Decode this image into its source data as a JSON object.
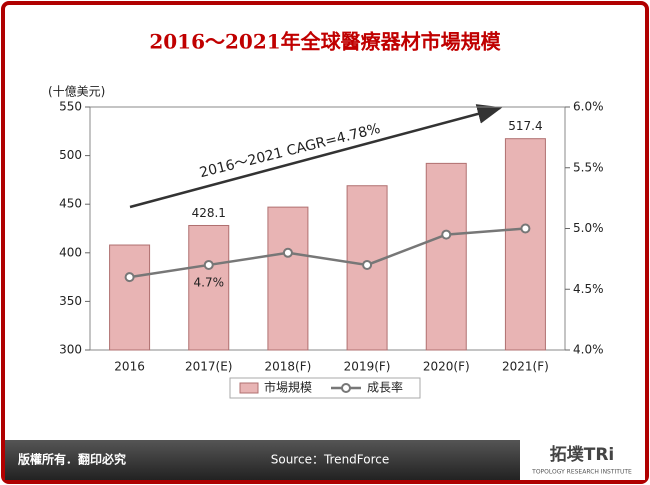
{
  "chart_data": {
    "type": "bar",
    "title": "2016～2021年全球醫療器材市場規模",
    "y_label": "(十億美元)",
    "annotation": "2016～2021 CAGR=4.78%",
    "categories": [
      "2016",
      "2017(E)",
      "2018(F)",
      "2019(F)",
      "2020(F)",
      "2021(F)"
    ],
    "series": [
      {
        "name": "市場規模",
        "type": "bar",
        "color": "#e8b4b4",
        "values": [
          408,
          428.1,
          447,
          469,
          492,
          517.4
        ],
        "value_labels": [
          null,
          "428.1",
          null,
          null,
          null,
          "517.4"
        ]
      },
      {
        "name": "成長率",
        "type": "line",
        "axis": "y2",
        "color": "#777777",
        "values": [
          4.6,
          4.7,
          4.8,
          4.7,
          4.95,
          5.0
        ],
        "value_labels": [
          null,
          "4.7%",
          null,
          null,
          null,
          null
        ]
      }
    ],
    "ylim": [
      300,
      550
    ],
    "yticks": [
      300,
      350,
      400,
      450,
      500,
      550
    ],
    "y2lim": [
      4.0,
      6.0
    ],
    "y2ticks": [
      {
        "value": 4.0,
        "label": "4.0%"
      },
      {
        "value": 4.5,
        "label": "4.5%"
      },
      {
        "value": 5.0,
        "label": "5.0%"
      },
      {
        "value": 5.5,
        "label": "5.5%"
      },
      {
        "value": 6.0,
        "label": "6.0%"
      }
    ],
    "legend": "bottom"
  },
  "footer": {
    "copyright": "版權所有．翻印必究",
    "source": "Source：TrendForce"
  },
  "brand": {
    "name": "拓墣TRi",
    "subtitle": "TOPOLOGY RESEARCH INSTITUTE"
  }
}
